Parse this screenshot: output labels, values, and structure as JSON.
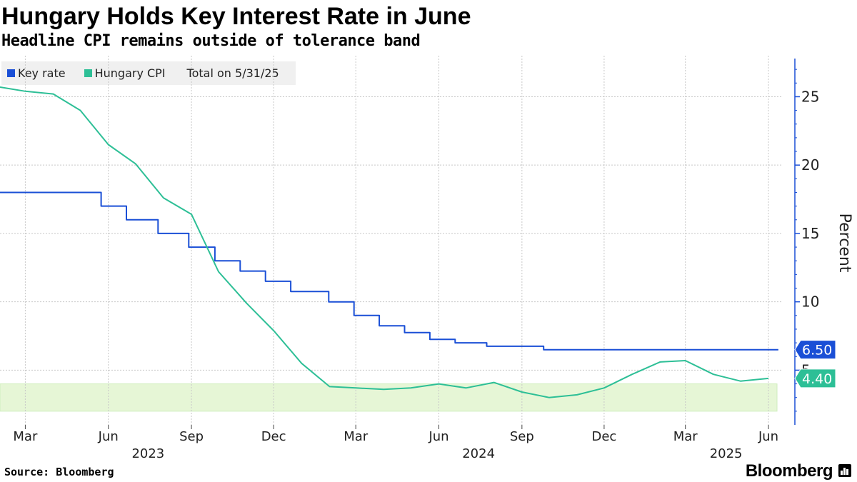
{
  "title": "Hungary Holds Key Interest Rate in June",
  "subtitle": "Headline CPI remains outside of tolerance band",
  "legend": {
    "items": [
      {
        "label": "Key rate",
        "color": "#1a4fd6"
      },
      {
        "label": "Hungary CPI",
        "color": "#2dbf96"
      }
    ],
    "as_of": "Total on 5/31/25"
  },
  "footer": {
    "source": "Source: Bloomberg",
    "brand": "Bloomberg"
  },
  "chart_data": {
    "type": "line",
    "ylabel": "Percent",
    "ylim": [
      1,
      28
    ],
    "yticks": [
      5,
      10,
      15,
      20,
      25
    ],
    "xlim": [
      "2023-02-01",
      "2025-06-16"
    ],
    "xticks": [
      {
        "date": "2023-03-01",
        "label": "Mar"
      },
      {
        "date": "2023-06-01",
        "label": "Jun"
      },
      {
        "date": "2023-09-01",
        "label": "Sep"
      },
      {
        "date": "2023-12-01",
        "label": "Dec"
      },
      {
        "date": "2024-03-01",
        "label": "Mar"
      },
      {
        "date": "2024-06-01",
        "label": "Jun"
      },
      {
        "date": "2024-09-01",
        "label": "Sep"
      },
      {
        "date": "2024-12-01",
        "label": "Dec"
      },
      {
        "date": "2025-03-01",
        "label": "Mar"
      },
      {
        "date": "2025-06-01",
        "label": "Jun"
      }
    ],
    "year_labels": [
      {
        "date": "2023-07-15",
        "label": "2023"
      },
      {
        "date": "2024-07-15",
        "label": "2024"
      },
      {
        "date": "2025-04-15",
        "label": "2025"
      }
    ],
    "tolerance_band": {
      "low": 2,
      "high": 4,
      "color": "#e6f6d6"
    },
    "series": [
      {
        "name": "Key rate",
        "color": "#1a4fd6",
        "step": true,
        "end_label": "6.50",
        "points": [
          [
            "2023-02-01",
            18
          ],
          [
            "2023-05-24",
            17
          ],
          [
            "2023-06-21",
            16
          ],
          [
            "2023-07-26",
            15
          ],
          [
            "2023-08-29",
            14
          ],
          [
            "2023-09-27",
            13
          ],
          [
            "2023-10-25",
            12.25
          ],
          [
            "2023-11-22",
            11.5
          ],
          [
            "2023-12-20",
            10.75
          ],
          [
            "2024-01-31",
            10
          ],
          [
            "2024-02-28",
            9
          ],
          [
            "2024-03-27",
            8.25
          ],
          [
            "2024-04-24",
            7.75
          ],
          [
            "2024-05-22",
            7.25
          ],
          [
            "2024-06-19",
            7
          ],
          [
            "2024-07-24",
            6.75
          ],
          [
            "2024-09-25",
            6.5
          ],
          [
            "2025-06-12",
            6.5
          ]
        ]
      },
      {
        "name": "Hungary CPI",
        "color": "#2dbf96",
        "step": false,
        "end_label": "4.40",
        "points": [
          [
            "2023-02-01",
            25.7
          ],
          [
            "2023-03-01",
            25.4
          ],
          [
            "2023-04-01",
            25.2
          ],
          [
            "2023-05-01",
            24.0
          ],
          [
            "2023-06-01",
            21.5
          ],
          [
            "2023-07-01",
            20.1
          ],
          [
            "2023-08-01",
            17.6
          ],
          [
            "2023-09-01",
            16.4
          ],
          [
            "2023-10-01",
            12.2
          ],
          [
            "2023-11-01",
            9.9
          ],
          [
            "2023-12-01",
            7.9
          ],
          [
            "2024-01-01",
            5.5
          ],
          [
            "2024-02-01",
            3.8
          ],
          [
            "2024-03-01",
            3.7
          ],
          [
            "2024-04-01",
            3.6
          ],
          [
            "2024-05-01",
            3.7
          ],
          [
            "2024-06-01",
            4.0
          ],
          [
            "2024-07-01",
            3.7
          ],
          [
            "2024-08-01",
            4.1
          ],
          [
            "2024-09-01",
            3.4
          ],
          [
            "2024-10-01",
            3.0
          ],
          [
            "2024-11-01",
            3.2
          ],
          [
            "2024-12-01",
            3.7
          ],
          [
            "2025-01-01",
            4.7
          ],
          [
            "2025-02-01",
            5.6
          ],
          [
            "2025-03-01",
            5.7
          ],
          [
            "2025-04-01",
            4.7
          ],
          [
            "2025-05-01",
            4.2
          ],
          [
            "2025-06-01",
            4.4
          ]
        ]
      }
    ]
  }
}
